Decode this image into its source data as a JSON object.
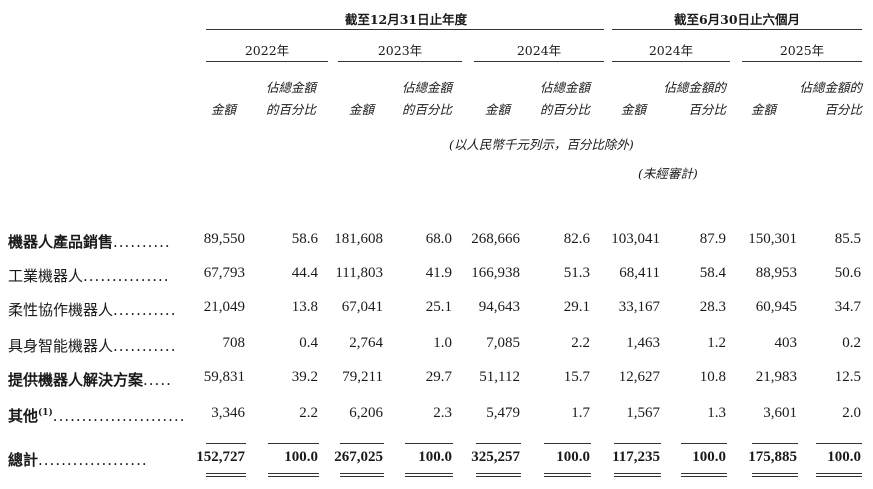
{
  "header": {
    "group1": "截至12月31日止年度",
    "group2": "截至6月30日止六個月",
    "years": [
      "2022年",
      "2023年",
      "2024年",
      "2024年",
      "2025年"
    ],
    "col_amount": "金額",
    "col_pct_line1": "佔總金額",
    "col_pct_line2": "的百分比",
    "col_pct_alt_line1": "佔總金額的",
    "col_pct_alt_line2": "百分比",
    "unit_note": "(以人民幣千元列示，百分比除外)",
    "unaudited_note": "(未經審計)"
  },
  "rows": [
    {
      "label": "機器人產品銷售",
      "dots": "..........",
      "bold": true,
      "values": [
        "89,550",
        "58.6",
        "181,608",
        "68.0",
        "268,666",
        "82.6",
        "103,041",
        "87.9",
        "150,301",
        "85.5"
      ]
    },
    {
      "label": "工業機器人",
      "dots": "...............",
      "bold": false,
      "values": [
        "67,793",
        "44.4",
        "111,803",
        "41.9",
        "166,938",
        "51.3",
        "68,411",
        "58.4",
        "88,953",
        "50.6"
      ]
    },
    {
      "label": "柔性協作機器人",
      "dots": "...........",
      "bold": false,
      "values": [
        "21,049",
        "13.8",
        "67,041",
        "25.1",
        "94,643",
        "29.1",
        "33,167",
        "28.3",
        "60,945",
        "34.7"
      ]
    },
    {
      "label": "具身智能機器人",
      "dots": "...........",
      "bold": false,
      "values": [
        "708",
        "0.4",
        "2,764",
        "1.0",
        "7,085",
        "2.2",
        "1,463",
        "1.2",
        "403",
        "0.2"
      ]
    },
    {
      "label": "提供機器人解決方案",
      "dots": ".....",
      "bold": true,
      "values": [
        "59,831",
        "39.2",
        "79,211",
        "29.7",
        "51,112",
        "15.7",
        "12,627",
        "10.8",
        "21,983",
        "12.5"
      ]
    },
    {
      "label": "其他",
      "sup": "(1)",
      "dots": ".......................",
      "bold": true,
      "values": [
        "3,346",
        "2.2",
        "6,206",
        "2.3",
        "5,479",
        "1.7",
        "1,567",
        "1.3",
        "3,601",
        "2.0"
      ]
    },
    {
      "label": "總計",
      "dots": "...................",
      "bold": true,
      "total": true,
      "values": [
        "152,727",
        "100.0",
        "267,025",
        "100.0",
        "325,257",
        "100.0",
        "117,235",
        "100.0",
        "175,885",
        "100.0"
      ]
    }
  ]
}
